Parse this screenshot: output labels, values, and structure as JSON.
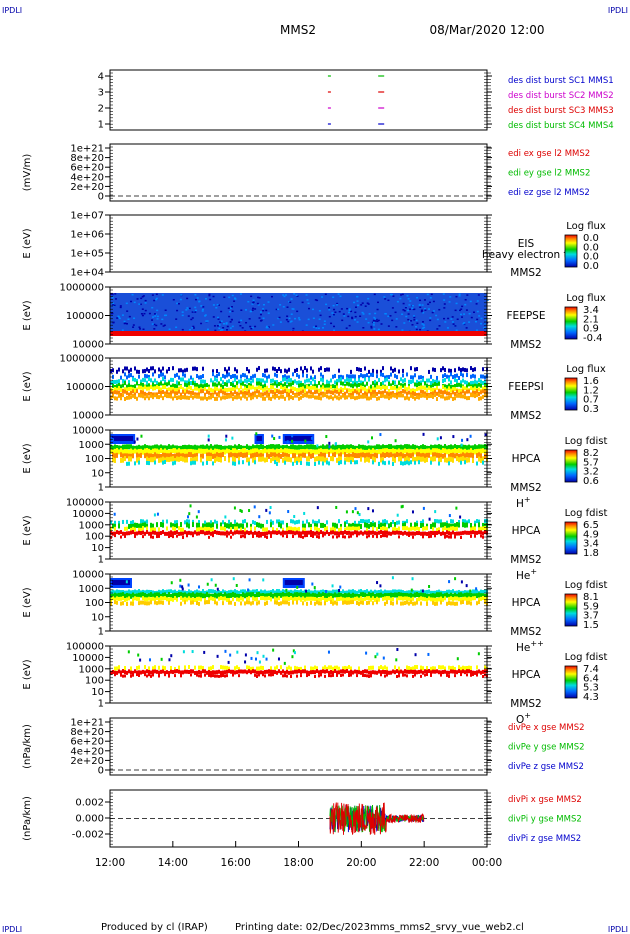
{
  "corner_label": "IPDLI",
  "header": {
    "mission": "MMS2",
    "datetime": "08/Mar/2020 12:00"
  },
  "footer": {
    "produced_by": "Produced by cl (IRAP)",
    "printing_date": "Printing date: 02/Dec/2023",
    "filename": "mms_mms2_srvy_vue_web2.cl"
  },
  "x_ticks": [
    "12:00",
    "14:00",
    "16:00",
    "18:00",
    "20:00",
    "22:00",
    "00:00"
  ],
  "chart_data": [
    {
      "id": "burst",
      "type": "scatter",
      "yticks": [
        "4",
        "3",
        "2",
        "1"
      ],
      "series": [
        {
          "name": "des dist burst SC1 MMS1",
          "color": "#0000cc",
          "y": 1,
          "x_hours": [
            19.0,
            20.6
          ]
        },
        {
          "name": "des dist burst SC2 MMS2",
          "color": "#cc00cc",
          "y": 2,
          "x_hours": [
            19.0,
            20.6
          ]
        },
        {
          "name": "des dist burst SC3 MMS3",
          "color": "#dd0000",
          "y": 3,
          "x_hours": [
            19.0,
            20.6
          ]
        },
        {
          "name": "des dist burst SC4 MMS4",
          "color": "#00bb00",
          "y": 4,
          "x_hours": [
            19.0,
            20.6
          ]
        }
      ]
    },
    {
      "id": "edi",
      "type": "line",
      "ylabel": "(mV/m)",
      "yticks": [
        "1e+21",
        "8e+20",
        "6e+20",
        "4e+20",
        "2e+20",
        "0"
      ],
      "legend": [
        {
          "name": "edi ex gse l2 MMS2",
          "color": "#dd0000"
        },
        {
          "name": "edi ey gse l2 MMS2",
          "color": "#00bb00"
        },
        {
          "name": "edi ez gse l2 MMS2",
          "color": "#0000cc"
        }
      ]
    },
    {
      "id": "eis",
      "type": "heatmap",
      "ylabel": "E (eV)",
      "yticks": [
        "1e+07",
        "1e+06",
        "1e+05",
        "1e+04"
      ],
      "instrument": "EIS",
      "overlap_text": "heavy electron to",
      "sc": "MMS2",
      "colorbar": {
        "title": "Log flux",
        "ticks": [
          "0.0",
          "0.0",
          "0.0",
          "0.0"
        ]
      }
    },
    {
      "id": "feepse",
      "type": "heatmap",
      "ylabel": "E (eV)",
      "yticks": [
        "1000000",
        "100000",
        "10000"
      ],
      "instrument": "FEEPSE",
      "sc": "MMS2",
      "colorbar": {
        "title": "Log flux",
        "ticks": [
          "3.4",
          "2.1",
          "0.9",
          "-0.4"
        ]
      }
    },
    {
      "id": "feepsi",
      "type": "heatmap",
      "ylabel": "E (eV)",
      "yticks": [
        "1000000",
        "100000",
        "10000"
      ],
      "instrument": "FEEPSI",
      "sc": "MMS2",
      "colorbar": {
        "title": "Log flux",
        "ticks": [
          "1.6",
          "1.2",
          "0.7",
          "0.3"
        ]
      }
    },
    {
      "id": "hpca_h",
      "type": "heatmap",
      "ylabel": "E (eV)",
      "yticks": [
        "10000",
        "1000",
        "100",
        "10",
        "1"
      ],
      "instrument": "HPCA",
      "sc": "MMS2",
      "species": "H+",
      "colorbar": {
        "title": "Log fdist",
        "ticks": [
          "8.2",
          "5.7",
          "3.2",
          "0.6"
        ]
      }
    },
    {
      "id": "hpca_he",
      "type": "heatmap",
      "ylabel": "E (eV)",
      "yticks": [
        "100000",
        "10000",
        "1000",
        "100",
        "10",
        "1"
      ],
      "instrument": "HPCA",
      "sc": "MMS2",
      "species": "He+",
      "colorbar": {
        "title": "Log fdist",
        "ticks": [
          "6.5",
          "4.9",
          "3.4",
          "1.8"
        ]
      }
    },
    {
      "id": "hpca_hepp",
      "type": "heatmap",
      "ylabel": "E (eV)",
      "yticks": [
        "10000",
        "1000",
        "100",
        "10",
        "1"
      ],
      "instrument": "HPCA",
      "sc": "MMS2",
      "species": "He++",
      "colorbar": {
        "title": "Log fdist",
        "ticks": [
          "8.1",
          "5.9",
          "3.7",
          "1.5"
        ]
      }
    },
    {
      "id": "hpca_o",
      "type": "heatmap",
      "ylabel": "E (eV)",
      "yticks": [
        "100000",
        "10000",
        "1000",
        "100",
        "10",
        "1"
      ],
      "instrument": "HPCA",
      "sc": "MMS2",
      "species": "O+",
      "colorbar": {
        "title": "Log fdist",
        "ticks": [
          "7.4",
          "6.4",
          "5.3",
          "4.3"
        ]
      }
    },
    {
      "id": "divpe",
      "type": "line",
      "ylabel": "(nPa/km)",
      "yticks": [
        "1e+21",
        "8e+20",
        "6e+20",
        "4e+20",
        "2e+20",
        "0"
      ],
      "legend": [
        {
          "name": "divPe x gse MMS2",
          "color": "#dd0000"
        },
        {
          "name": "divPe y gse MMS2",
          "color": "#00bb00"
        },
        {
          "name": "divPe z gse MMS2",
          "color": "#0000cc"
        }
      ]
    },
    {
      "id": "divpi",
      "type": "line",
      "ylabel": "(nPa/km)",
      "yticks": [
        "0.002",
        "0.000",
        "-0.002"
      ],
      "ylim": [
        -0.004,
        0.004
      ],
      "data_x_range_hours": [
        19.0,
        22.0
      ],
      "legend": [
        {
          "name": "divPi x gse MMS2",
          "color": "#dd0000"
        },
        {
          "name": "divPi y gse MMS2",
          "color": "#00bb00"
        },
        {
          "name": "divPi z gse MMS2",
          "color": "#0000cc"
        }
      ]
    }
  ]
}
